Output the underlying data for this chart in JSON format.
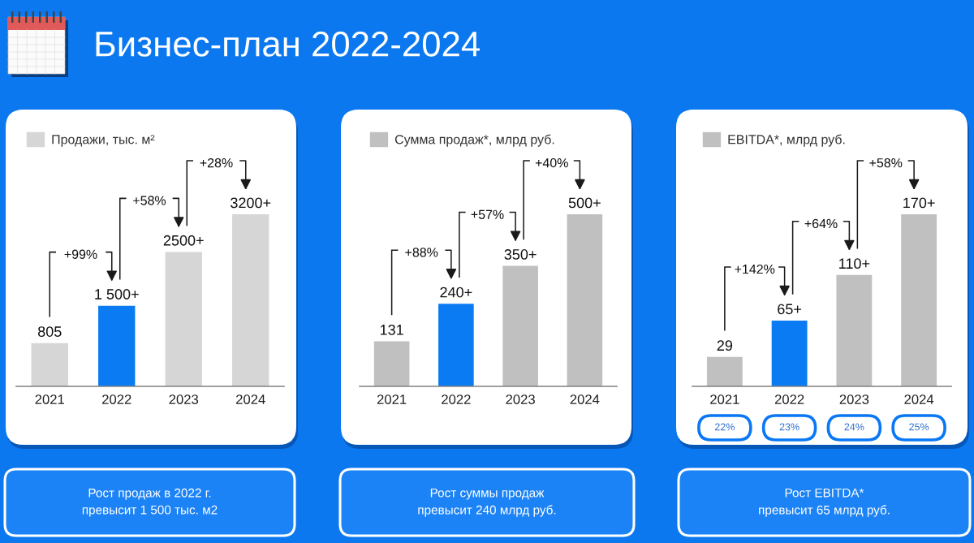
{
  "chart_data": [
    {
      "type": "bar",
      "title": "Бизнес-план 2022-2024",
      "categories": [
        "2021",
        "2022",
        "2023",
        "2024"
      ],
      "series": [
        {
          "name": "Продажи, тыс. м²",
          "color": "#d6d6d6",
          "colors": [
            "#d6d6d6",
            "#0b7bf4",
            "#d6d6d6",
            "#d6d6d6"
          ],
          "values": [
            805,
            1500,
            2500,
            3200
          ],
          "value_labels": [
            "805",
            "1 500+",
            "2500+",
            "3200+"
          ]
        }
      ],
      "legend": "top left",
      "tick_labels": "x",
      "annotations": [
        "+99%",
        "+58%",
        "+28%",
        "Рост продаж в 2022 г.\nпревысит 1 500 тыс. м2"
      ]
    },
    {
      "type": "bar",
      "categories": [
        "2021",
        "2022",
        "2023",
        "2024"
      ],
      "series": [
        {
          "name": "Сумма продаж*, млрд руб.",
          "color": "#c0c0c0",
          "colors": [
            "#c0c0c0",
            "#0b7bf4",
            "#c0c0c0",
            "#c0c0c0"
          ],
          "values": [
            131,
            240,
            350,
            500
          ],
          "value_labels": [
            "131",
            "240+",
            "350+",
            "500+"
          ]
        }
      ],
      "legend": "top left",
      "tick_labels": "x",
      "annotations": [
        "+88%",
        "+57%",
        "+40%",
        "Рост суммы продаж\nпревысит 240 млрд руб."
      ]
    },
    {
      "type": "bar",
      "categories": [
        "2021",
        "2022",
        "2023",
        "2024"
      ],
      "series": [
        {
          "name": "EBITDA*, млрд руб.",
          "color": "#c0c0c0",
          "colors": [
            "#c0c0c0",
            "#0b7bf4",
            "#c0c0c0",
            "#c0c0c0"
          ],
          "values": [
            29,
            65,
            110,
            170
          ],
          "value_labels": [
            "29",
            "65+",
            "110+",
            "170+"
          ]
        }
      ],
      "legend": "top left",
      "tick_labels": "x",
      "annotations": [
        "+142%",
        "+64%",
        "+58%",
        "22%",
        "23%",
        "24%",
        "25%",
        "Рост EBITDA*\nпревысит 65 млрд руб."
      ]
    }
  ]
}
